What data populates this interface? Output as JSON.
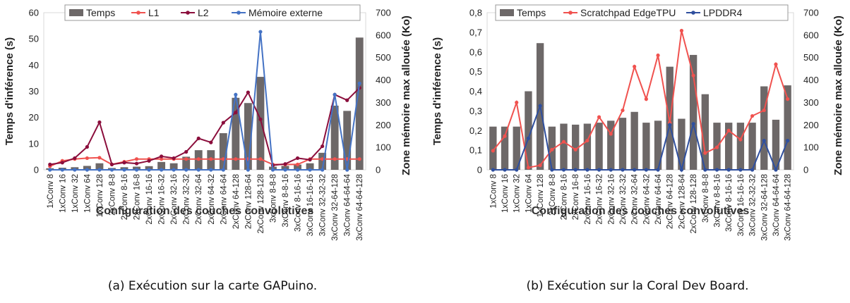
{
  "chart_data": [
    {
      "type": "bar+line",
      "caption": "(a) Exécution sur la carte GAPuino.",
      "xlabel": "Configuration des couches convolutives",
      "ylabel_left": "Temps d'inférence (s)",
      "ylabel_right": "Zone mémoire max allouée (Ko)",
      "ylim_left": [
        0,
        60
      ],
      "yticks_left": [
        0,
        10,
        20,
        30,
        40,
        50,
        60
      ],
      "ylim_right": [
        0,
        700
      ],
      "yticks_right": [
        0,
        100,
        200,
        300,
        400,
        500,
        600,
        700
      ],
      "legend_placement": "top",
      "categories": [
        "1xConv 8",
        "1xConv 16",
        "1xConv 32",
        "1xConv 64",
        "1xConv 128",
        "2xConv 8-8",
        "2xConv 8-16",
        "2xConv 16-8",
        "2xConv 16-16",
        "2xConv 16-32",
        "2xConv 32-16",
        "2xConv 32-32",
        "2xConv 32-64",
        "2xConv 64-32",
        "2xConv 64-64",
        "2xConv 64-128",
        "2xConv 128-64",
        "2xConv 128-128",
        "3xConv 8-8-8",
        "3xConv 8-8-16",
        "3xConv 8-16-16",
        "3xConv 16-16-16",
        "3xConv 32-32-32",
        "3xConv 32-64-128",
        "3xConv 64-64-64",
        "3xConv 64-64-128"
      ],
      "bar_series": {
        "name": "Temps",
        "color": "#6d6868",
        "values": [
          0.6,
          0.8,
          1.0,
          1.5,
          2.5,
          0.7,
          1.0,
          1.2,
          1.4,
          3.0,
          2.5,
          5.0,
          7.5,
          7.5,
          14.0,
          27.5,
          25.5,
          35.5,
          1.2,
          1.5,
          2.0,
          2.5,
          6.5,
          24.5,
          22.5,
          50.5
        ]
      },
      "line_series": [
        {
          "name": "L1",
          "color": "#f0524f",
          "values": [
            16,
            40,
            48,
            52,
            54,
            24,
            36,
            48,
            48,
            48,
            48,
            48,
            48,
            48,
            48,
            48,
            48,
            48,
            24,
            24,
            24,
            48,
            48,
            48,
            48,
            48
          ]
        },
        {
          "name": "L2",
          "color": "#8b0e3c",
          "values": [
            24,
            32,
            52,
            102,
            212,
            24,
            32,
            28,
            40,
            60,
            52,
            80,
            140,
            122,
            210,
            255,
            345,
            225,
            20,
            26,
            52,
            45,
            105,
            335,
            310,
            365
          ]
        },
        {
          "name": "Mémoire externe",
          "color": "#4472c4",
          "values": [
            0,
            0,
            0,
            0,
            0,
            0,
            0,
            0,
            0,
            0,
            0,
            0,
            0,
            0,
            0,
            335,
            0,
            615,
            0,
            0,
            0,
            0,
            0,
            335,
            0,
            385
          ]
        }
      ]
    },
    {
      "type": "bar+line",
      "caption": "(b) Exécution sur la Coral Dev Board.",
      "xlabel": "Configuration des couches convolutives",
      "ylabel_left": "Temps d'inférence (s)",
      "ylabel_right": "Zone mémoire max allouée (Ko)",
      "ylim_left": [
        0,
        0.8
      ],
      "yticks_left": [
        "0",
        "0,1",
        "0,2",
        "0,3",
        "0,4",
        "0,5",
        "0,6",
        "0,7",
        "0,8"
      ],
      "ylim_right": [
        0,
        700
      ],
      "yticks_right": [
        0,
        100,
        200,
        300,
        400,
        500,
        600,
        700
      ],
      "legend_placement": "top",
      "categories": [
        "1xConv 8",
        "1xConv 16",
        "1xConv 32",
        "1xConv 64",
        "1xConv 128",
        "2xConv 8-8",
        "2xConv 8-16",
        "2xConv 16-8",
        "2xConv 16-16",
        "2xConv 16-32",
        "2xConv 32-16",
        "2xConv 32-32",
        "2xConv 32-64",
        "2xConv 64-32",
        "2xConv 64-64",
        "2xConv 64-128",
        "2xConv 128-64",
        "2xConv 128-128",
        "3xConv 8-8-8",
        "3xConv 8-8-16",
        "3xConv 8-16-16",
        "3xConv 16-16-16",
        "3xConv 32-32-32",
        "3xConv 32-64-128",
        "3xConv 64-64-64",
        "3xConv 64-64-128"
      ],
      "bar_series": {
        "name": "Temps",
        "color": "#6d6868",
        "values": [
          0.22,
          0.22,
          0.22,
          0.4,
          0.645,
          0.22,
          0.235,
          0.23,
          0.235,
          0.24,
          0.25,
          0.265,
          0.295,
          0.24,
          0.25,
          0.525,
          0.26,
          0.585,
          0.385,
          0.24,
          0.24,
          0.24,
          0.24,
          0.425,
          0.255,
          0.43
        ]
      },
      "line_series": [
        {
          "name": "Scratchpad EdgeTPU",
          "color": "#f0524f",
          "values": [
            85,
            150,
            300,
            10,
            20,
            90,
            125,
            90,
            130,
            235,
            160,
            265,
            460,
            315,
            510,
            210,
            620,
            420,
            75,
            100,
            175,
            135,
            240,
            265,
            470,
            315
          ]
        },
        {
          "name": "LPDDR4",
          "color": "#2f4f9e",
          "values": [
            0,
            0,
            0,
            140,
            285,
            0,
            0,
            0,
            0,
            0,
            0,
            0,
            0,
            0,
            0,
            200,
            0,
            205,
            0,
            0,
            0,
            0,
            0,
            130,
            0,
            130
          ]
        }
      ]
    }
  ]
}
